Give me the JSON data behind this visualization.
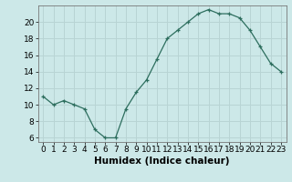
{
  "x": [
    0,
    1,
    2,
    3,
    4,
    5,
    6,
    7,
    8,
    9,
    10,
    11,
    12,
    13,
    14,
    15,
    16,
    17,
    18,
    19,
    20,
    21,
    22,
    23
  ],
  "y": [
    11,
    10,
    10.5,
    10,
    9.5,
    7,
    6,
    6,
    9.5,
    11.5,
    13,
    15.5,
    18,
    19,
    20,
    21,
    21.5,
    21,
    21,
    20.5,
    19,
    17,
    15,
    14
  ],
  "line_color": "#2d6e5e",
  "marker": "+",
  "bg_color": "#cce8e8",
  "grid_color": "#b8d4d4",
  "xlabel": "Humidex (Indice chaleur)",
  "xlim": [
    -0.5,
    23.5
  ],
  "ylim": [
    5.5,
    22
  ],
  "yticks": [
    6,
    8,
    10,
    12,
    14,
    16,
    18,
    20
  ],
  "xticks": [
    0,
    1,
    2,
    3,
    4,
    5,
    6,
    7,
    8,
    9,
    10,
    11,
    12,
    13,
    14,
    15,
    16,
    17,
    18,
    19,
    20,
    21,
    22,
    23
  ],
  "xlabel_fontsize": 7.5,
  "tick_fontsize": 6.5
}
